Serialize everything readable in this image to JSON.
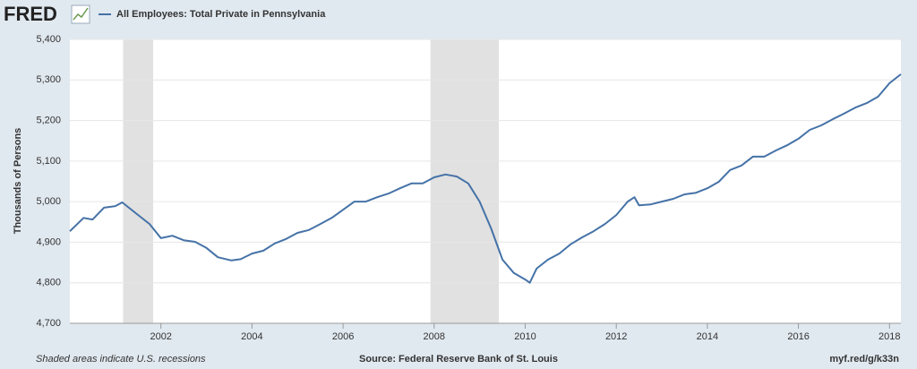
{
  "logo": "FRED",
  "chart_data": {
    "type": "line",
    "title": "All Employees: Total Private in Pennsylvania",
    "y_label": "Thousands of Persons",
    "footer_left": "Shaded areas indicate U.S. recessions",
    "footer_center": "Source: Federal Reserve Bank of St. Louis",
    "footer_right": "myf.red/g/k33n",
    "xlim": [
      2000,
      2018.25
    ],
    "ylim": [
      4700,
      5400
    ],
    "xticks": [
      2002,
      2004,
      2006,
      2008,
      2010,
      2012,
      2014,
      2016,
      2018
    ],
    "yticks": [
      {
        "value": 4700,
        "label": "4,700"
      },
      {
        "value": 4800,
        "label": "4,800"
      },
      {
        "value": 4900,
        "label": "4,900"
      },
      {
        "value": 5000,
        "label": "5,000"
      },
      {
        "value": 5100,
        "label": "5,100"
      },
      {
        "value": 5200,
        "label": "5,200"
      },
      {
        "value": 5300,
        "label": "5,300"
      },
      {
        "value": 5400,
        "label": "5,400"
      }
    ],
    "grid": true,
    "recessions": [
      [
        2001.17,
        2001.83
      ],
      [
        2007.92,
        2009.42
      ]
    ],
    "series": [
      {
        "name": "All Employees: Total Private in Pennsylvania",
        "color": "#4572a7",
        "x": [
          2000,
          2000.3,
          2000.5,
          2000.75,
          2001,
          2001.15,
          2001.5,
          2001.75,
          2002,
          2002.25,
          2002.5,
          2002.75,
          2003,
          2003.25,
          2003.55,
          2003.75,
          2004,
          2004.25,
          2004.5,
          2004.75,
          2005,
          2005.25,
          2005.5,
          2005.75,
          2006,
          2006.25,
          2006.5,
          2006.75,
          2007,
          2007.25,
          2007.5,
          2007.75,
          2008,
          2008.25,
          2008.5,
          2008.75,
          2009,
          2009.25,
          2009.5,
          2009.75,
          2010,
          2010.1,
          2010.25,
          2010.5,
          2010.75,
          2011,
          2011.25,
          2011.5,
          2011.75,
          2012,
          2012.25,
          2012.4,
          2012.5,
          2012.75,
          2013,
          2013.25,
          2013.5,
          2013.75,
          2014,
          2014.25,
          2014.5,
          2014.75,
          2015,
          2015.25,
          2015.5,
          2015.75,
          2016,
          2016.25,
          2016.5,
          2016.75,
          2017,
          2017.25,
          2017.5,
          2017.75,
          2018,
          2018.25
        ],
        "values": [
          4927,
          4960,
          4956,
          4985,
          4989,
          4998,
          4967,
          4945,
          4910,
          4916,
          4905,
          4901,
          4886,
          4863,
          4855,
          4858,
          4872,
          4879,
          4897,
          4908,
          4923,
          4930,
          4945,
          4960,
          4980,
          5000,
          5000,
          5011,
          5020,
          5033,
          5045,
          5045,
          5060,
          5067,
          5062,
          5045,
          5000,
          4934,
          4857,
          4824,
          4808,
          4800,
          4835,
          4857,
          4872,
          4895,
          4912,
          4927,
          4945,
          4967,
          5000,
          5011,
          4991,
          4993,
          5000,
          5007,
          5018,
          5022,
          5033,
          5049,
          5078,
          5089,
          5111,
          5111,
          5126,
          5139,
          5155,
          5177,
          5188,
          5203,
          5217,
          5232,
          5243,
          5259,
          5292,
          5314
        ]
      }
    ]
  }
}
